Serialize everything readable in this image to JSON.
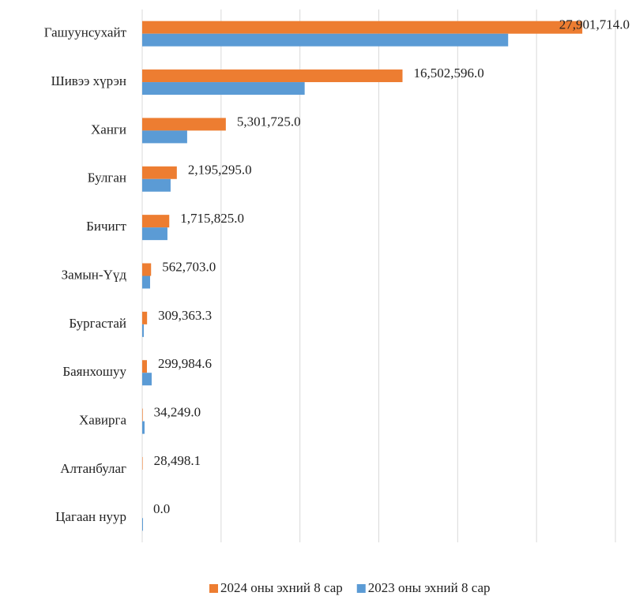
{
  "chart_data": {
    "type": "bar",
    "orientation": "horizontal",
    "categories": [
      "Гашуунсухайт",
      "Шивээ хүрэн",
      "Ханги",
      "Булган",
      "Бичигт",
      "Замын-Үүд",
      "Бургастай",
      "Баянхошуу",
      "Хавирга",
      "Алтанбулаг",
      "Цагаан нуур"
    ],
    "series": [
      {
        "name": "2024 оны эхний 8 сар",
        "color": "#ED7D31",
        "values": [
          27901714.0,
          16502596.0,
          5301725.0,
          2195295.0,
          1715825.0,
          562703.0,
          309363.3,
          299984.6,
          34249.0,
          28498.1,
          0.0
        ],
        "value_labels": [
          "27,901,714.0",
          "16,502,596.0",
          "5,301,725.0",
          "2,195,295.0",
          "1,715,825.0",
          "562,703.0",
          "309,363.3",
          "299,984.6",
          "34,249.0",
          "28,498.1",
          "0.0"
        ]
      },
      {
        "name": "2023 оны эхний 8 сар",
        "color": "#5B9BD5",
        "values": [
          23200000,
          10300000,
          2850000,
          1800000,
          1600000,
          500000,
          100000,
          600000,
          150000,
          0,
          50000
        ]
      }
    ],
    "xlim": [
      0,
      30000000
    ],
    "xticks": [
      0,
      5000000,
      10000000,
      15000000,
      20000000,
      25000000,
      30000000
    ],
    "grid": true,
    "legend": "bottom"
  }
}
